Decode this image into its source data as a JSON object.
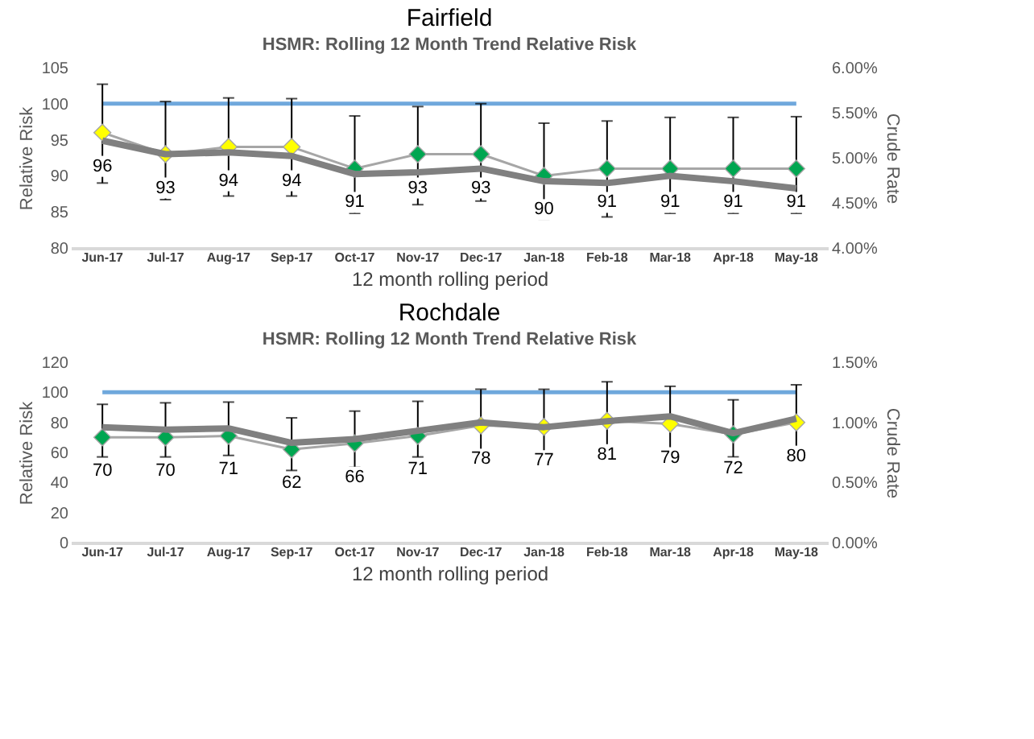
{
  "chart_data": [
    {
      "type": "line",
      "title": "Fairfield",
      "subtitle": "HSMR: Rolling 12 Month Trend Relative Risk",
      "xlabel": "12 month rolling period",
      "ylabel": "Relative Risk",
      "y2label": "Crude Rate",
      "categories": [
        "Jun-17",
        "Jul-17",
        "Aug-17",
        "Sep-17",
        "Oct-17",
        "Nov-17",
        "Dec-17",
        "Jan-18",
        "Feb-18",
        "Mar-18",
        "Apr-18",
        "May-18"
      ],
      "series": [
        {
          "color": "#a6a6a6",
          "marker": "diamond",
          "line_style": "solid",
          "values": [
            96,
            93,
            94,
            94,
            91,
            93,
            93,
            90,
            91,
            91,
            91,
            91
          ],
          "value_labels": [
            "96",
            "93",
            "94",
            "94",
            "91",
            "93",
            "93",
            "90",
            "91",
            "91",
            "91",
            "91"
          ],
          "colors": [
            "#ffff00",
            "#ffff00",
            "#ffff00",
            "#ffff00",
            "#00a651",
            "#00a651",
            "#00a651",
            "#00a651",
            "#00a651",
            "#00a651",
            "#00a651",
            "#00a651"
          ],
          "errors": [
            [
              89,
              102.7
            ],
            [
              86.7,
              100.3
            ],
            [
              87.2,
              100.8
            ],
            [
              87.2,
              100.7
            ],
            [
              84.8,
              98.3
            ],
            [
              86,
              99.6
            ],
            [
              86.5,
              100
            ],
            [
              84,
              97.3
            ],
            [
              84.3,
              97.6
            ],
            [
              84.8,
              98.1
            ],
            [
              84.8,
              98.1
            ],
            [
              84.8,
              98.2
            ]
          ]
        },
        {
          "axis": "y2",
          "color": "#808080",
          "marker": "none",
          "line_style": "solid",
          "values": [
            5.19,
            5.04,
            5.06,
            5.02,
            4.82,
            4.84,
            4.88,
            4.74,
            4.72,
            4.8,
            4.74,
            4.66
          ]
        }
      ],
      "ref_lines": [
        {
          "axis": "y",
          "value": 100,
          "label": null,
          "color": "#6fa8dc"
        }
      ],
      "ylim": [
        80,
        105
      ],
      "yticks": [
        80,
        85,
        90,
        95,
        100,
        105
      ],
      "y2lim": [
        4,
        6
      ],
      "y2ticks": [
        {
          "value": 4,
          "label": "4.00%"
        },
        {
          "value": 4.5,
          "label": "4.50%"
        },
        {
          "value": 5,
          "label": "5.00%"
        },
        {
          "value": 5.5,
          "label": "5.50%"
        },
        {
          "value": 6,
          "label": "6.00%"
        }
      ],
      "grid": false
    },
    {
      "type": "line",
      "title": "Rochdale",
      "subtitle": "HSMR: Rolling 12 Month Trend Relative Risk",
      "xlabel": "12 month rolling period",
      "ylabel": "Relative Risk",
      "y2label": "Crude Rate",
      "categories": [
        "Jun-17",
        "Jul-17",
        "Aug-17",
        "Sep-17",
        "Oct-17",
        "Nov-17",
        "Dec-17",
        "Jan-18",
        "Feb-18",
        "Mar-18",
        "Apr-18",
        "May-18"
      ],
      "series": [
        {
          "color": "#a6a6a6",
          "marker": "diamond",
          "line_style": "solid",
          "values": [
            70,
            70,
            71,
            62,
            66,
            71,
            78,
            77,
            81,
            79,
            72,
            80
          ],
          "value_labels": [
            "70",
            "70",
            "71",
            "62",
            "66",
            "71",
            "78",
            "77",
            "81",
            "79",
            "72",
            "80"
          ],
          "colors": [
            "#00a651",
            "#00a651",
            "#00a651",
            "#00a651",
            "#00a651",
            "#00a651",
            "#ffff00",
            "#ffff00",
            "#ffff00",
            "#ffff00",
            "#00a651",
            "#ffff00"
          ],
          "errors": [
            [
              57,
              92
            ],
            [
              57,
              93
            ],
            [
              58,
              93.5
            ],
            [
              48,
              83
            ],
            [
              50,
              87.5
            ],
            [
              57,
              94
            ],
            [
              58,
              102
            ],
            [
              57,
              102
            ],
            [
              61,
              107
            ],
            [
              60,
              104
            ],
            [
              57,
              95
            ],
            [
              60,
              105
            ]
          ]
        },
        {
          "axis": "y2",
          "color": "#808080",
          "marker": "none",
          "line_style": "solid",
          "values": [
            0.96,
            0.94,
            0.95,
            0.83,
            0.86,
            0.93,
            1.0,
            0.96,
            1.01,
            1.05,
            0.91,
            1.03
          ]
        }
      ],
      "ref_lines": [
        {
          "axis": "y",
          "value": 100,
          "label": null,
          "color": "#6fa8dc"
        }
      ],
      "ylim": [
        0,
        120
      ],
      "yticks": [
        0,
        20,
        40,
        60,
        80,
        100,
        120
      ],
      "y2lim": [
        0,
        1.5
      ],
      "y2ticks": [
        {
          "value": 0,
          "label": "0.00%"
        },
        {
          "value": 0.5,
          "label": "0.50%"
        },
        {
          "value": 1,
          "label": "1.00%"
        },
        {
          "value": 1.5,
          "label": "1.50%"
        }
      ],
      "grid": false
    }
  ]
}
